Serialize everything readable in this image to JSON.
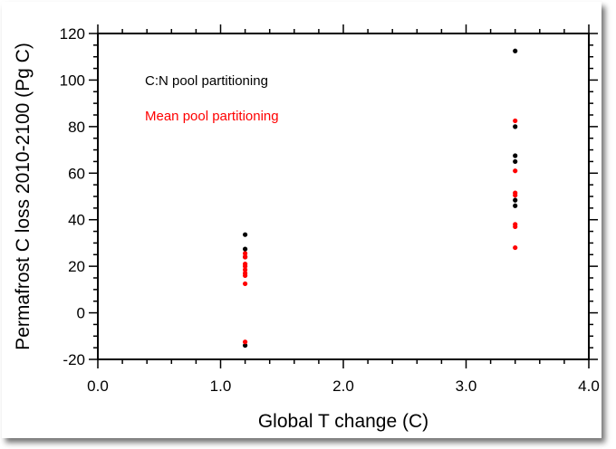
{
  "chart_data": {
    "type": "scatter",
    "title": "",
    "xlabel": "Global T change (C)",
    "ylabel": "Permafrost C loss 2010-2100 (Pg C)",
    "xlim": [
      0,
      4
    ],
    "ylim": [
      -20,
      120
    ],
    "xticks": [
      "0.0",
      "1.0",
      "2.0",
      "3.0",
      "4.0"
    ],
    "yticks": [
      "-20",
      "0",
      "20",
      "40",
      "60",
      "80",
      "100",
      "120"
    ],
    "grid": false,
    "legend_placement": "top-left",
    "series": [
      {
        "name": "C:N pool partitioning",
        "color": "#000000",
        "points": [
          [
            1.2,
            33.6
          ],
          [
            1.2,
            27.4
          ],
          [
            1.2,
            24
          ],
          [
            1.2,
            -14
          ],
          [
            3.4,
            112.5
          ],
          [
            3.4,
            80
          ],
          [
            3.4,
            67.5
          ],
          [
            3.4,
            65
          ],
          [
            3.4,
            48.4
          ],
          [
            3.4,
            46
          ]
        ]
      },
      {
        "name": "Mean pool partitioning",
        "color": "#ff0000",
        "points": [
          [
            1.2,
            25.5
          ],
          [
            1.2,
            24
          ],
          [
            1.2,
            21
          ],
          [
            1.2,
            20
          ],
          [
            1.2,
            18.5
          ],
          [
            1.2,
            17
          ],
          [
            1.2,
            16
          ],
          [
            1.2,
            12.5
          ],
          [
            1.2,
            -12.5
          ],
          [
            3.4,
            82.5
          ],
          [
            3.4,
            61
          ],
          [
            3.4,
            51.5
          ],
          [
            3.4,
            50.5
          ],
          [
            3.4,
            38
          ],
          [
            3.4,
            37
          ],
          [
            3.4,
            28
          ]
        ]
      }
    ]
  }
}
